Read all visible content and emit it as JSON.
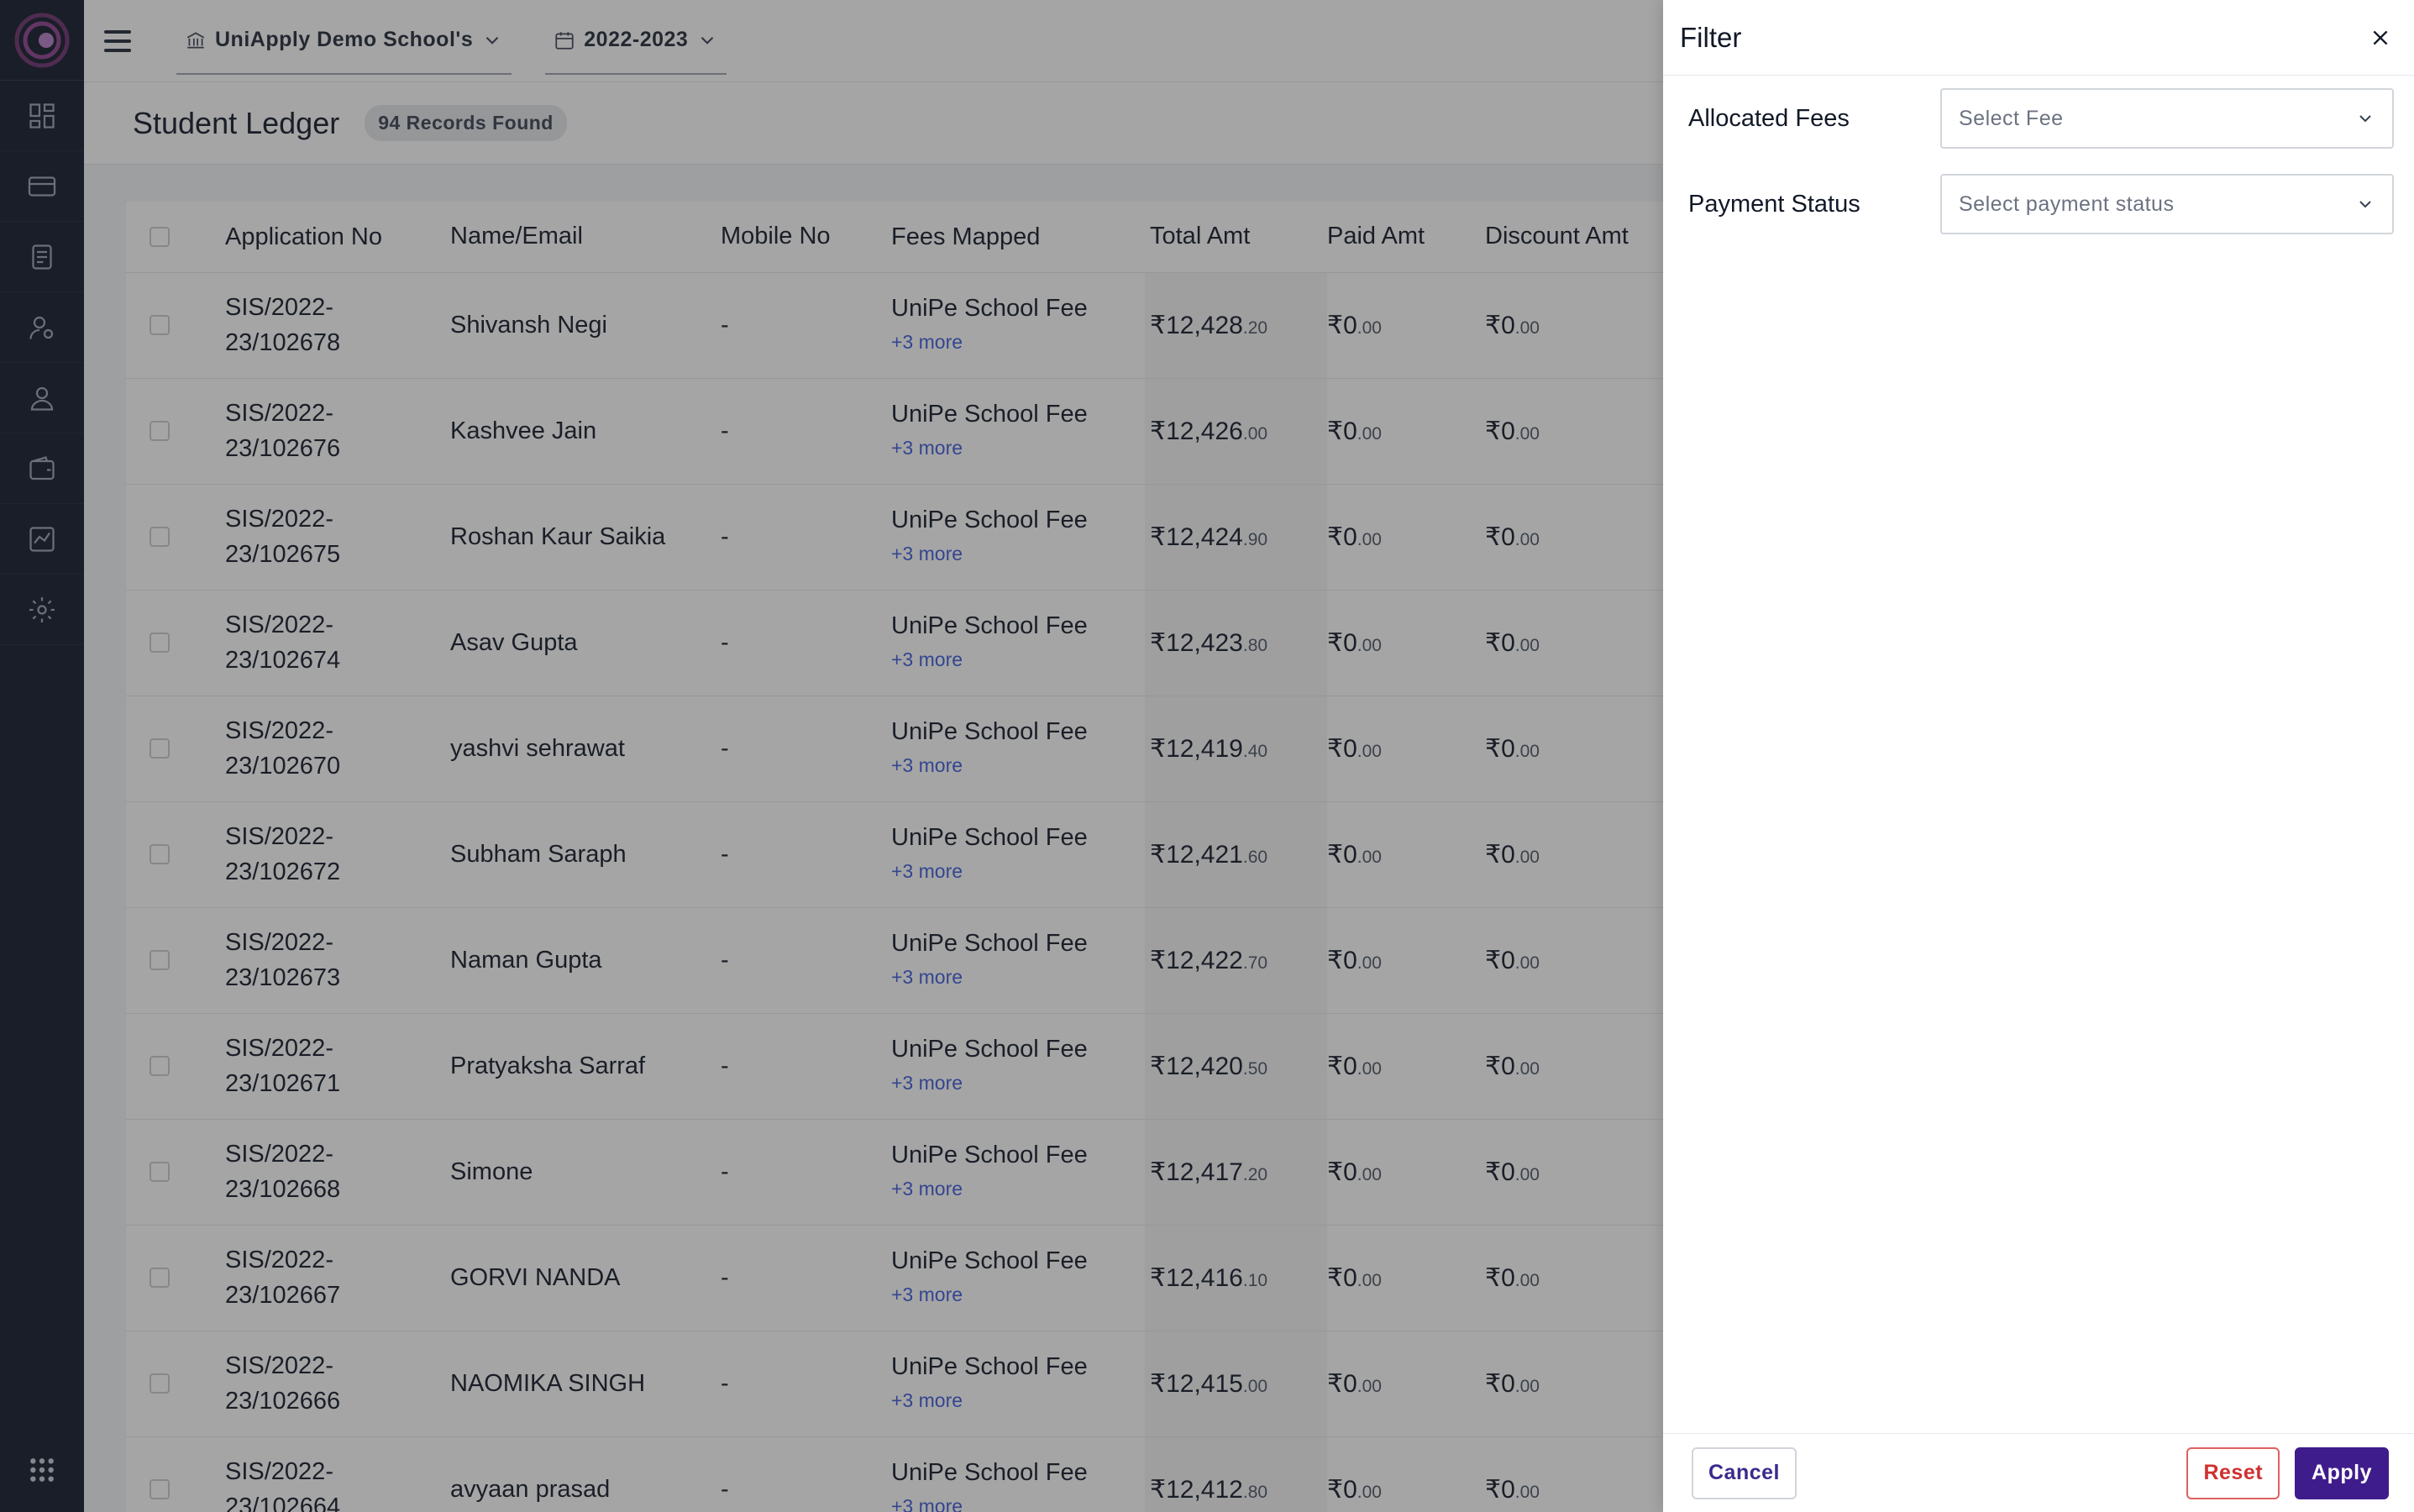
{
  "topbar": {
    "school_label": "UniApply Demo School's",
    "year_label": "2022-2023"
  },
  "page": {
    "title": "Student Ledger",
    "records_badge": "94 Records Found"
  },
  "sidebar": {
    "icons": [
      "dashboard-icon",
      "card-icon",
      "document-icon",
      "user-settings-icon",
      "student-icon",
      "wallet-icon",
      "chart-icon",
      "gear-icon"
    ]
  },
  "table": {
    "headers": {
      "application_no": "Application No",
      "name_email": "Name/Email",
      "mobile_no": "Mobile No",
      "fees_mapped": "Fees Mapped",
      "total_amt": "Total Amt",
      "paid_amt": "Paid Amt",
      "discount_amt": "Discount Amt"
    },
    "rows": [
      {
        "app_line1": "SIS/2022-",
        "app_line2": "23/102678",
        "name": "Shivansh Negi",
        "mobile": "-",
        "fee": "UniPe School Fee",
        "more": "+3 more",
        "total_main": "₹12,428",
        "total_dec": ".20",
        "paid_main": "₹0",
        "paid_dec": ".00",
        "disc_main": "₹0",
        "disc_dec": ".00"
      },
      {
        "app_line1": "SIS/2022-",
        "app_line2": "23/102676",
        "name": "Kashvee Jain",
        "mobile": "-",
        "fee": "UniPe School Fee",
        "more": "+3 more",
        "total_main": "₹12,426",
        "total_dec": ".00",
        "paid_main": "₹0",
        "paid_dec": ".00",
        "disc_main": "₹0",
        "disc_dec": ".00"
      },
      {
        "app_line1": "SIS/2022-",
        "app_line2": "23/102675",
        "name": "Roshan Kaur Saikia",
        "mobile": "-",
        "fee": "UniPe School Fee",
        "more": "+3 more",
        "total_main": "₹12,424",
        "total_dec": ".90",
        "paid_main": "₹0",
        "paid_dec": ".00",
        "disc_main": "₹0",
        "disc_dec": ".00"
      },
      {
        "app_line1": "SIS/2022-",
        "app_line2": "23/102674",
        "name": "Asav Gupta",
        "mobile": "-",
        "fee": "UniPe School Fee",
        "more": "+3 more",
        "total_main": "₹12,423",
        "total_dec": ".80",
        "paid_main": "₹0",
        "paid_dec": ".00",
        "disc_main": "₹0",
        "disc_dec": ".00"
      },
      {
        "app_line1": "SIS/2022-",
        "app_line2": "23/102670",
        "name": "yashvi sehrawat",
        "mobile": "-",
        "fee": "UniPe School Fee",
        "more": "+3 more",
        "total_main": "₹12,419",
        "total_dec": ".40",
        "paid_main": "₹0",
        "paid_dec": ".00",
        "disc_main": "₹0",
        "disc_dec": ".00"
      },
      {
        "app_line1": "SIS/2022-",
        "app_line2": "23/102672",
        "name": "Subham Saraph",
        "mobile": "-",
        "fee": "UniPe School Fee",
        "more": "+3 more",
        "total_main": "₹12,421",
        "total_dec": ".60",
        "paid_main": "₹0",
        "paid_dec": ".00",
        "disc_main": "₹0",
        "disc_dec": ".00"
      },
      {
        "app_line1": "SIS/2022-",
        "app_line2": "23/102673",
        "name": "Naman Gupta",
        "mobile": "-",
        "fee": "UniPe School Fee",
        "more": "+3 more",
        "total_main": "₹12,422",
        "total_dec": ".70",
        "paid_main": "₹0",
        "paid_dec": ".00",
        "disc_main": "₹0",
        "disc_dec": ".00"
      },
      {
        "app_line1": "SIS/2022-",
        "app_line2": "23/102671",
        "name": "Pratyaksha Sarraf",
        "mobile": "-",
        "fee": "UniPe School Fee",
        "more": "+3 more",
        "total_main": "₹12,420",
        "total_dec": ".50",
        "paid_main": "₹0",
        "paid_dec": ".00",
        "disc_main": "₹0",
        "disc_dec": ".00"
      },
      {
        "app_line1": "SIS/2022-",
        "app_line2": "23/102668",
        "name": "Simone",
        "mobile": "-",
        "fee": "UniPe School Fee",
        "more": "+3 more",
        "total_main": "₹12,417",
        "total_dec": ".20",
        "paid_main": "₹0",
        "paid_dec": ".00",
        "disc_main": "₹0",
        "disc_dec": ".00"
      },
      {
        "app_line1": "SIS/2022-",
        "app_line2": "23/102667",
        "name": "GORVI NANDA",
        "mobile": "-",
        "fee": "UniPe School Fee",
        "more": "+3 more",
        "total_main": "₹12,416",
        "total_dec": ".10",
        "paid_main": "₹0",
        "paid_dec": ".00",
        "disc_main": "₹0",
        "disc_dec": ".00"
      },
      {
        "app_line1": "SIS/2022-",
        "app_line2": "23/102666",
        "name": "NAOMIKA SINGH",
        "mobile": "-",
        "fee": "UniPe School Fee",
        "more": "+3 more",
        "total_main": "₹12,415",
        "total_dec": ".00",
        "paid_main": "₹0",
        "paid_dec": ".00",
        "disc_main": "₹0",
        "disc_dec": ".00"
      },
      {
        "app_line1": "SIS/2022-",
        "app_line2": "23/102664",
        "name": "avyaan prasad",
        "mobile": "-",
        "fee": "UniPe School Fee",
        "more": "+3 more",
        "total_main": "₹12,412",
        "total_dec": ".80",
        "paid_main": "₹0",
        "paid_dec": ".00",
        "disc_main": "₹0",
        "disc_dec": ".00"
      }
    ]
  },
  "filter_panel": {
    "title": "Filter",
    "allocated_fees_label": "Allocated Fees",
    "allocated_fees_placeholder": "Select Fee",
    "payment_status_label": "Payment Status",
    "payment_status_placeholder": "Select payment status",
    "cancel_label": "Cancel",
    "reset_label": "Reset",
    "apply_label": "Apply"
  },
  "colors": {
    "sidebar_bg": "#101828",
    "apply_bg": "#3f1c8c",
    "reset_red": "#d12f2f",
    "link_blue": "#3b5bdb"
  }
}
